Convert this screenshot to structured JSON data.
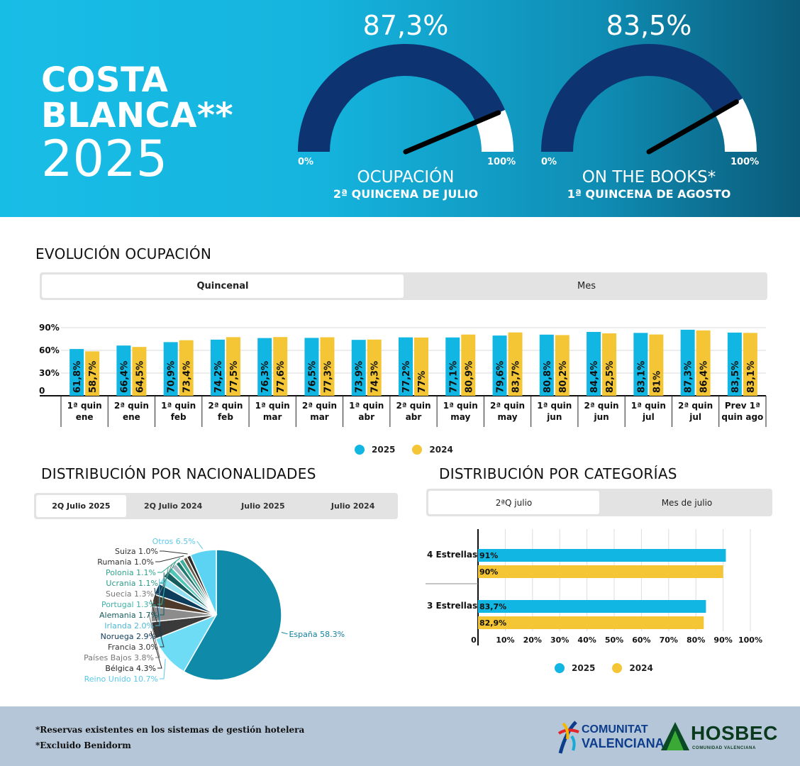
{
  "header": {
    "title_line1": "COSTA",
    "title_line2": "BLANCA**",
    "title_year": "2025",
    "colors": {
      "gauge_fill": "#0d3470",
      "gauge_empty": "#ffffff",
      "needle": "#000000"
    },
    "gauges": [
      {
        "value_text": "87,3%",
        "value": 87.3,
        "min_label": "0%",
        "max_label": "100%",
        "label": "OCUPACIÓN",
        "sublabel": "2ª QUINCENA DE JULIO"
      },
      {
        "value_text": "83,5%",
        "value": 83.5,
        "min_label": "0%",
        "max_label": "100%",
        "label": "ON THE BOOKS*",
        "sublabel": "1ª QUINCENA DE AGOSTO"
      }
    ]
  },
  "evolution": {
    "title": "EVOLUCIÓN OCUPACIÓN",
    "tabs": [
      {
        "label": "Quincenal",
        "active": true
      },
      {
        "label": "Mes",
        "active": false
      }
    ],
    "legend": [
      {
        "label": "2025",
        "color": "#12b6e3"
      },
      {
        "label": "2024",
        "color": "#f4c534"
      }
    ]
  },
  "nationalities": {
    "title": "DISTRIBUCIÓN POR NACIONALIDADES",
    "tabs": [
      {
        "label": "2Q Julio 2025",
        "active": true
      },
      {
        "label": "2Q Julio 2024",
        "active": false
      },
      {
        "label": "Julio 2025",
        "active": false
      },
      {
        "label": "Julio 2024",
        "active": false
      }
    ]
  },
  "categories": {
    "title": "DISTRIBUCIÓN POR CATEGORÍAS",
    "tabs": [
      {
        "label": "2ªQ julio",
        "active": true
      },
      {
        "label": "Mes de julio",
        "active": false
      }
    ],
    "legend": [
      {
        "label": "2025",
        "color": "#12b6e3"
      },
      {
        "label": "2024",
        "color": "#f4c534"
      }
    ]
  },
  "footer": {
    "note1": "*Reservas existentes en los sistemas de gestión hotelera",
    "note2": "*Excluido Benidorm",
    "logo_cv_line1": "COMUNITAT",
    "logo_cv_line2": "VALENCIANA",
    "logo_hosbec": "HOSBEC",
    "logo_hosbec_sub": "COMUNIDAD VALENCIANA"
  },
  "chart_data": [
    {
      "type": "bar",
      "categories": [
        "1ª quin ene",
        "2ª quin ene",
        "1ª quin feb",
        "2ª quin feb",
        "1ª quin mar",
        "2ª quin mar",
        "1ª quin abr",
        "2ª quin abr",
        "1ª quin may",
        "2ª quin may",
        "1ª quin jun",
        "2ª quin jun",
        "1ª quin jul",
        "2ª quin jul",
        "Prev 1ª quin ago"
      ],
      "category_lines": [
        [
          "1ª quin",
          "ene"
        ],
        [
          "2ª quin",
          "ene"
        ],
        [
          "1ª quin",
          "feb"
        ],
        [
          "2ª quin",
          "feb"
        ],
        [
          "1ª quin",
          "mar"
        ],
        [
          "2ª quin",
          "mar"
        ],
        [
          "1ª quin",
          "abr"
        ],
        [
          "2ª quin",
          "abr"
        ],
        [
          "1ª quin",
          "may"
        ],
        [
          "2ª quin",
          "may"
        ],
        [
          "1ª quin",
          "jun"
        ],
        [
          "2ª quin",
          "jun"
        ],
        [
          "1ª quin",
          "jul"
        ],
        [
          "2ª quin",
          "jul"
        ],
        [
          "Prev 1ª",
          "quin ago"
        ]
      ],
      "series": [
        {
          "name": "2025",
          "color": "#12b6e3",
          "values": [
            61.8,
            66.4,
            70.9,
            74.2,
            76.3,
            76.5,
            73.9,
            77.2,
            77.1,
            79.6,
            80.8,
            84.4,
            83.1,
            87.3,
            83.5
          ],
          "labels": [
            "61,8%",
            "66,4%",
            "70,9%",
            "74,2%",
            "76,3%",
            "76,5%",
            "73,9%",
            "77,2%",
            "77,1%",
            "79,6%",
            "80,8%",
            "84,4%",
            "83,1%",
            "87,3%",
            "83,5%"
          ]
        },
        {
          "name": "2024",
          "color": "#f4c534",
          "values": [
            58.7,
            64.5,
            73.4,
            77.5,
            77.6,
            77.3,
            74.3,
            77,
            80.9,
            83.7,
            80.2,
            82.5,
            81,
            86.4,
            83.1
          ],
          "labels": [
            "58,7%",
            "64,5%",
            "73,4%",
            "77,5%",
            "77,6%",
            "77,3%",
            "74,3%",
            "77%",
            "80,9%",
            "83,7%",
            "80,2%",
            "82,5%",
            "81%",
            "86,4%",
            "83,1%"
          ]
        }
      ],
      "yticks": [
        {
          "value": 0,
          "label": "0"
        },
        {
          "value": 30,
          "label": "30%"
        },
        {
          "value": 60,
          "label": "60%"
        },
        {
          "value": 90,
          "label": "90%"
        }
      ],
      "ylim": [
        0,
        90
      ],
      "grid": true
    },
    {
      "type": "pie",
      "slices": [
        {
          "label": "España",
          "value": 58.3,
          "text": "España 58.3%",
          "color": "#0f8aa8",
          "label_color": "#0f7fa0"
        },
        {
          "label": "Reino Unido",
          "value": 10.7,
          "text": "Reino Unido 10.7%",
          "color": "#6fdcf5",
          "label_color": "#58c9ea"
        },
        {
          "label": "Bélgica",
          "value": 4.3,
          "text": "Bélgica 4.3%",
          "color": "#3a3a3a",
          "label_color": "#222222"
        },
        {
          "label": "Países Bajos",
          "value": 3.8,
          "text": "Países Bajos 3.8%",
          "color": "#8c8c8c",
          "label_color": "#777777"
        },
        {
          "label": "Francia",
          "value": 3.0,
          "text": "Francia 3.0%",
          "color": "#4d3a2a",
          "label_color": "#333333"
        },
        {
          "label": "Noruega",
          "value": 2.9,
          "text": "Noruega 2.9%",
          "color": "#0e3d5c",
          "label_color": "#0e3d5c"
        },
        {
          "label": "Irlanda",
          "value": 2.0,
          "text": "Irlanda 2.0%",
          "color": "#8fdff0",
          "label_color": "#4fb8d4"
        },
        {
          "label": "Alemania",
          "value": 1.7,
          "text": "Alemania 1.7%",
          "color": "#165b5e",
          "label_color": "#165b5e"
        },
        {
          "label": "Portugal",
          "value": 1.3,
          "text": "Portugal 1.3%",
          "color": "#4fc6b6",
          "label_color": "#3fb3a6"
        },
        {
          "label": "Suecia",
          "value": 1.3,
          "text": "Suecia 1.3%",
          "color": "#a7b7c2",
          "label_color": "#777777"
        },
        {
          "label": "Ucrania",
          "value": 1.1,
          "text": "Ucrania 1.1%",
          "color": "#1f7a6e",
          "label_color": "#2a9a88"
        },
        {
          "label": "Polonia",
          "value": 1.1,
          "text": "Polonia 1.1%",
          "color": "#3fae9a",
          "label_color": "#2fa58e"
        },
        {
          "label": "Rumania",
          "value": 1.0,
          "text": "Rumania 1.0%",
          "color": "#6a5a4a",
          "label_color": "#333333"
        },
        {
          "label": "Suiza",
          "value": 1.0,
          "text": "Suiza 1.0%",
          "color": "#2a2a2a",
          "label_color": "#333333"
        },
        {
          "label": "Otros",
          "value": 6.5,
          "text": "Otros 6.5%",
          "color": "#5cd3f2",
          "label_color": "#5cc9ea"
        }
      ]
    },
    {
      "type": "bar",
      "orientation": "horizontal",
      "categories": [
        "4 Estrellas",
        "3 Estrellas"
      ],
      "series": [
        {
          "name": "2025",
          "color": "#12b6e3",
          "values": [
            91,
            83.7
          ],
          "labels": [
            "91%",
            "83,7%"
          ]
        },
        {
          "name": "2024",
          "color": "#f4c534",
          "values": [
            90,
            82.9
          ],
          "labels": [
            "90%",
            "82,9%"
          ]
        }
      ],
      "xticks": [
        "0",
        "10%",
        "20%",
        "30%",
        "40%",
        "50%",
        "60%",
        "70%",
        "80%",
        "90%",
        "100%"
      ],
      "xlim": [
        0,
        100
      ],
      "grid": true
    }
  ]
}
